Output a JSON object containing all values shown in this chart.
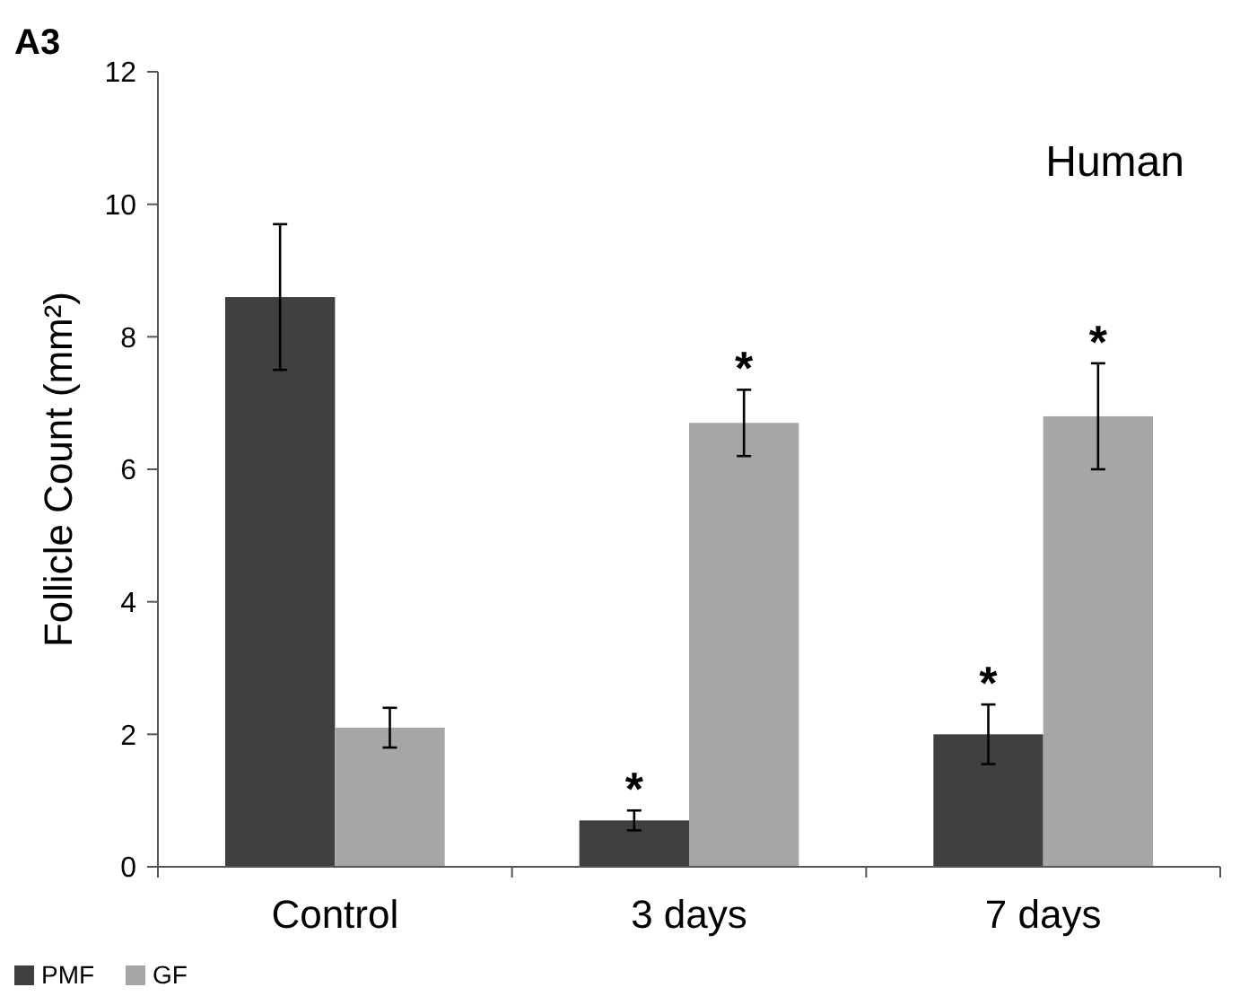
{
  "chart_data": {
    "type": "bar",
    "title": "A3",
    "ylabel": "Follicle Count (mm²)",
    "categories": [
      "Control",
      "3 days",
      "7 days"
    ],
    "series": [
      {
        "name": "PMF",
        "color": "#404040",
        "values": [
          8.6,
          0.7,
          2.0
        ],
        "errors": [
          1.1,
          0.15,
          0.45
        ]
      },
      {
        "name": "GF",
        "color": "#a6a6a6",
        "values": [
          2.1,
          6.7,
          6.8
        ],
        "errors": [
          0.3,
          0.5,
          0.8
        ]
      }
    ],
    "ylim": [
      0,
      12
    ],
    "yticks": [
      0,
      2,
      4,
      6,
      8,
      10,
      12
    ],
    "grid": false,
    "legend": "bottom left",
    "annotations": [
      "Human",
      {
        "text": "*",
        "x": "3 days",
        "y": 0.7
      },
      {
        "text": "*",
        "x": "3 days",
        "y": 6.7
      },
      {
        "text": "*",
        "x": "7 days",
        "y": 2.0
      },
      {
        "text": "*",
        "x": "7 days",
        "y": 6.8
      }
    ]
  }
}
